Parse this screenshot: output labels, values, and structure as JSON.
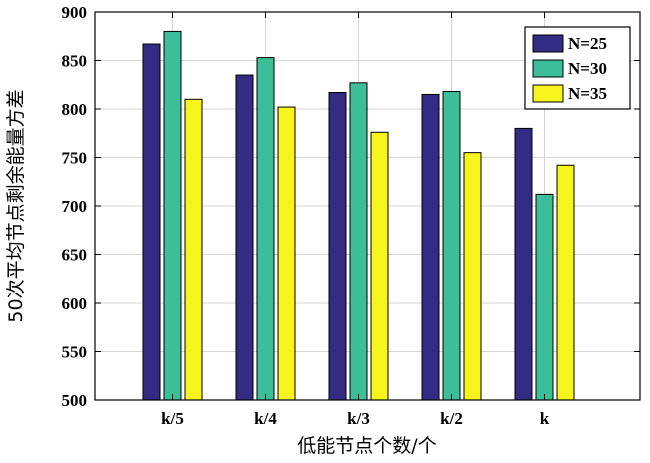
{
  "chart_data": {
    "type": "bar",
    "categories": [
      "k/5",
      "k/4",
      "k/3",
      "k/2",
      "k"
    ],
    "series": [
      {
        "name": "N=25",
        "color": "#342c84",
        "values": [
          867,
          835,
          817,
          815,
          780
        ]
      },
      {
        "name": "N=30",
        "color": "#3cbf98",
        "values": [
          880,
          853,
          827,
          818,
          712
        ]
      },
      {
        "name": "N=35",
        "color": "#f6f41c",
        "values": [
          810,
          802,
          776,
          755,
          742
        ]
      }
    ],
    "xlabel": "低能节点个数/个",
    "ylabel": "50次平均节点剩余能量方差",
    "ylim": [
      500,
      900
    ],
    "yticks": [
      500,
      550,
      600,
      650,
      700,
      750,
      800,
      850,
      900
    ],
    "grid": true,
    "legend_position": "top-right"
  }
}
